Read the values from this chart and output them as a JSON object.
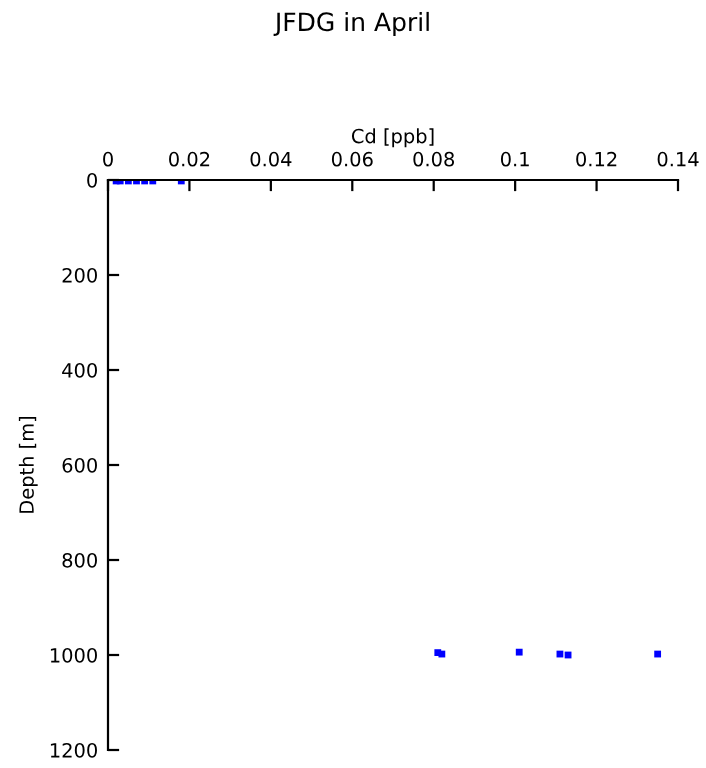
{
  "chart_data": {
    "type": "scatter",
    "title": "JFDG in April",
    "xlabel": "Cd [ppb]",
    "ylabel": "Depth [m]",
    "x": [
      0.002,
      0.003,
      0.005,
      0.007,
      0.009,
      0.011,
      0.018,
      0.081,
      0.082,
      0.101,
      0.111,
      0.113,
      0.135
    ],
    "values": [
      2,
      2,
      2,
      2,
      2,
      2,
      2,
      995,
      998,
      994,
      998,
      1000,
      998
    ],
    "color": "#0000ff",
    "marker": "square",
    "xlim": [
      0,
      0.14
    ],
    "xticks": [
      0,
      0.02,
      0.04,
      0.06,
      0.08,
      0.1,
      0.12,
      0.14
    ],
    "ylim": [
      1200,
      0
    ],
    "yticks": [
      0,
      200,
      400,
      600,
      800,
      1000,
      1200
    ],
    "grid": false
  }
}
